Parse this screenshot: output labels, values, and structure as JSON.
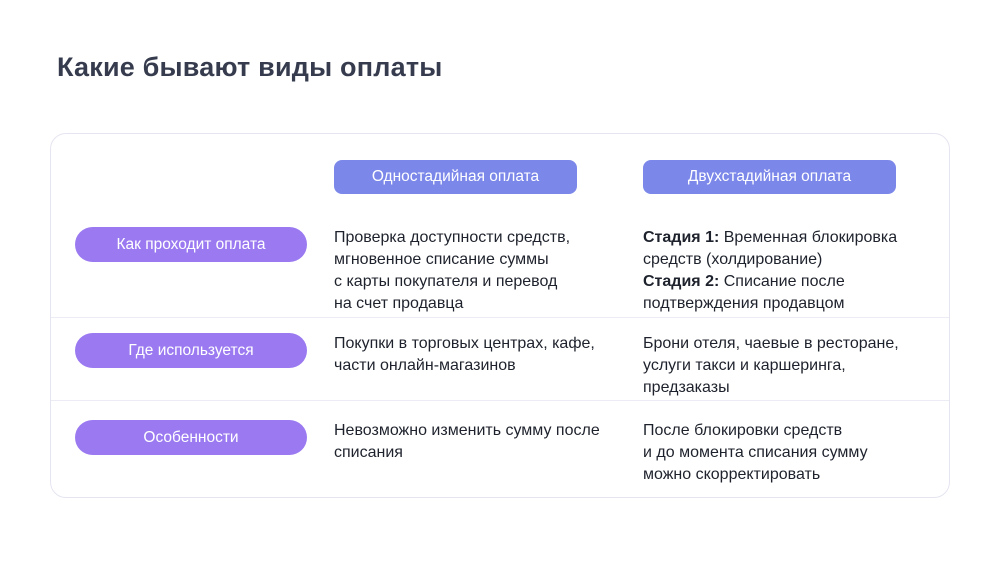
{
  "page": {
    "title": "Какие бывают виды оплаты"
  },
  "colors": {
    "header_pill": "#7B87E9",
    "row_pill": "#9B7AF1",
    "card_border": "#E5E5F1",
    "divider": "#ECECF5",
    "title_text": "#363C4E",
    "body_text": "#1E222C",
    "pill_text": "#FFFFFF",
    "page_bg": "#FFFFFF"
  },
  "table": {
    "column_headers": [
      {
        "label": "Одностадийная оплата"
      },
      {
        "label": "Двухстадийная оплата"
      }
    ],
    "rows": [
      {
        "label": "Как проходит оплата",
        "one_stage_lines": [
          "Проверка доступности средств,",
          "мгновенное списание суммы",
          "с карты покупателя и перевод",
          "на счет продавца"
        ],
        "two_stage_segments": [
          {
            "bold": "Стадия 1:",
            "text": " Временная блокировка средств (холдирование)"
          },
          {
            "bold": "Стадия 2:",
            "text": " Списание после подтверждения продавцом"
          }
        ]
      },
      {
        "label": "Где используется",
        "one_stage_lines": [
          "Покупки в торговых центрах, кафе,",
          "части онлайн-магазинов"
        ],
        "two_stage_lines": [
          "Брони отеля, чаевые в ресторане,",
          "услуги такси и каршеринга,",
          "предзаказы"
        ]
      },
      {
        "label": "Особенности",
        "one_stage_lines": [
          "Невозможно изменить сумму после",
          "списания"
        ],
        "two_stage_lines": [
          "После блокировки средств",
          "и до момента списания сумму",
          "можно скорректировать"
        ]
      }
    ]
  }
}
